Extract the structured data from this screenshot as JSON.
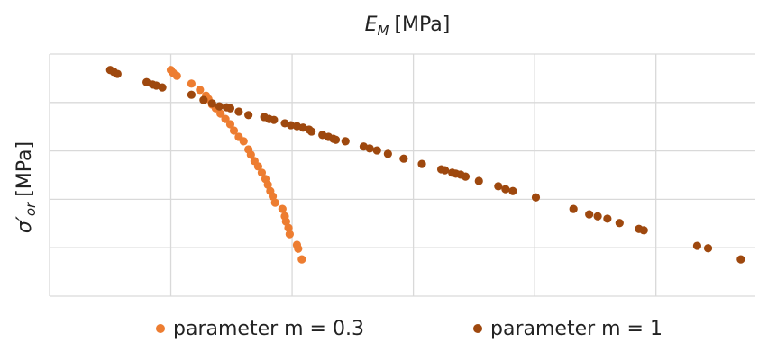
{
  "chart_data": {
    "type": "scatter",
    "xlabel_symbol": "E",
    "xlabel_subscript": "M",
    "xlabel_unit": "[MPa]",
    "ylabel_symbol": "σ′",
    "ylabel_subscript": "or",
    "ylabel_unit": "[MPa]",
    "xlim": [
      0,
      5.82
    ],
    "ylim": [
      0,
      5
    ],
    "xticks": [
      0,
      1,
      2,
      3,
      4,
      5
    ],
    "yticks": [
      0,
      1,
      2,
      3,
      4,
      5
    ],
    "grid": true,
    "legend": "bottom",
    "series": [
      {
        "name": "parameter m = 0.3",
        "color": "#ed7d31",
        "x": [
          1.0,
          1.02,
          1.05,
          1.17,
          1.24,
          1.29,
          1.31,
          1.34,
          1.37,
          1.41,
          1.45,
          1.49,
          1.52,
          1.56,
          1.6,
          1.64,
          1.66,
          1.69,
          1.72,
          1.75,
          1.78,
          1.8,
          1.82,
          1.84,
          1.86,
          1.92,
          1.94,
          1.95,
          1.97,
          1.98,
          2.04,
          2.05,
          2.08
        ],
        "values": [
          4.67,
          4.61,
          4.55,
          4.39,
          4.26,
          4.14,
          4.07,
          3.96,
          3.88,
          3.77,
          3.66,
          3.55,
          3.42,
          3.29,
          3.2,
          3.03,
          2.92,
          2.79,
          2.68,
          2.55,
          2.42,
          2.3,
          2.17,
          2.06,
          1.93,
          1.8,
          1.65,
          1.54,
          1.41,
          1.28,
          1.06,
          0.98,
          0.76
        ]
      },
      {
        "name": "parameter m = 1",
        "color": "#9e480e",
        "x": [
          0.5,
          0.53,
          0.56,
          0.8,
          0.85,
          0.88,
          0.93,
          1.17,
          1.27,
          1.34,
          1.4,
          1.46,
          1.49,
          1.56,
          1.64,
          1.77,
          1.81,
          1.85,
          1.94,
          1.99,
          2.04,
          2.09,
          2.14,
          2.16,
          2.25,
          2.3,
          2.34,
          2.36,
          2.44,
          2.59,
          2.64,
          2.7,
          2.79,
          2.92,
          3.07,
          3.23,
          3.26,
          3.32,
          3.35,
          3.39,
          3.43,
          3.54,
          3.7,
          3.76,
          3.82,
          4.01,
          4.32,
          4.45,
          4.52,
          4.6,
          4.7,
          4.86,
          4.9,
          5.34,
          5.43,
          5.7
        ],
        "values": [
          4.67,
          4.63,
          4.59,
          4.42,
          4.37,
          4.35,
          4.31,
          4.16,
          4.05,
          3.98,
          3.92,
          3.9,
          3.88,
          3.81,
          3.74,
          3.7,
          3.66,
          3.64,
          3.57,
          3.53,
          3.51,
          3.48,
          3.44,
          3.4,
          3.33,
          3.29,
          3.25,
          3.23,
          3.2,
          3.09,
          3.05,
          3.01,
          2.94,
          2.84,
          2.73,
          2.62,
          2.6,
          2.55,
          2.53,
          2.51,
          2.47,
          2.38,
          2.27,
          2.21,
          2.17,
          2.04,
          1.8,
          1.69,
          1.65,
          1.6,
          1.51,
          1.39,
          1.36,
          1.04,
          0.99,
          0.76
        ]
      }
    ]
  }
}
